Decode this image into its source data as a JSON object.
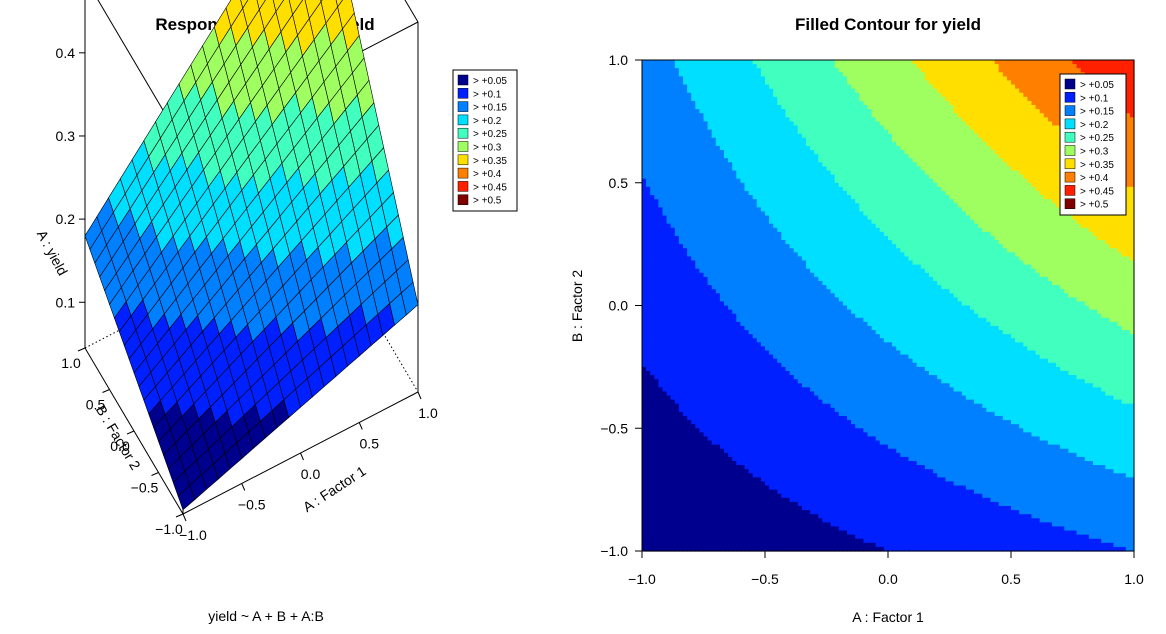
{
  "chart_data": [
    {
      "type": "surface",
      "title": "Response Surface for yield",
      "subtitle": "yield ~ A + B + A:B",
      "xlabel": "A :  Factor 1",
      "ylabel": "B :  Factor 2",
      "zlabel": "A : yield",
      "x_ticks": [
        "−1.0",
        "−0.5",
        "0.0",
        "0.5",
        "1.0"
      ],
      "y_ticks": [
        "−1.0",
        "−0.5",
        "0.0",
        "0.5",
        "1.0"
      ],
      "z_ticks": [
        "0.1",
        "0.2",
        "0.3",
        "0.4"
      ],
      "xlim": [
        -1,
        1
      ],
      "ylim": [
        -1,
        1
      ],
      "zlim": [
        0.045,
        0.49
      ],
      "corner_values": {
        "A-1_B-1": 0.05,
        "A1_B-1": 0.15,
        "A-1_B1": 0.18,
        "A1_B1": 0.49
      },
      "grid_n": 20,
      "legend": {
        "position": "top-right",
        "entries": [
          "> +0.05",
          "> +0.1",
          "> +0.15",
          "> +0.2",
          "> +0.25",
          "> +0.3",
          "> +0.35",
          "> +0.4",
          "> +0.45",
          "> +0.5"
        ],
        "colors": [
          "#00008F",
          "#0020FF",
          "#0080FF",
          "#00DFFF",
          "#40FFBF",
          "#9FFF60",
          "#FFDF00",
          "#FF8000",
          "#FF2000",
          "#800000"
        ]
      }
    },
    {
      "type": "contour",
      "title": "Filled Contour for yield",
      "xlabel": "A :  Factor 1",
      "ylabel": "B :  Factor 2",
      "x_ticks": [
        "−1.0",
        "−0.5",
        "0.0",
        "0.5",
        "1.0"
      ],
      "y_ticks": [
        "−1.0",
        "−0.5",
        "0.0",
        "0.5",
        "1.0"
      ],
      "xlim": [
        -1,
        1
      ],
      "ylim": [
        -1,
        1
      ],
      "legend": {
        "position": "top-right",
        "entries": [
          "> +0.05",
          "> +0.1",
          "> +0.15",
          "> +0.2",
          "> +0.25",
          "> +0.3",
          "> +0.35",
          "> +0.4",
          "> +0.45",
          "> +0.5"
        ],
        "colors": [
          "#00008F",
          "#0020FF",
          "#0080FF",
          "#00DFFF",
          "#40FFBF",
          "#9FFF60",
          "#FFDF00",
          "#FF8000",
          "#FF2000",
          "#800000"
        ]
      }
    }
  ]
}
